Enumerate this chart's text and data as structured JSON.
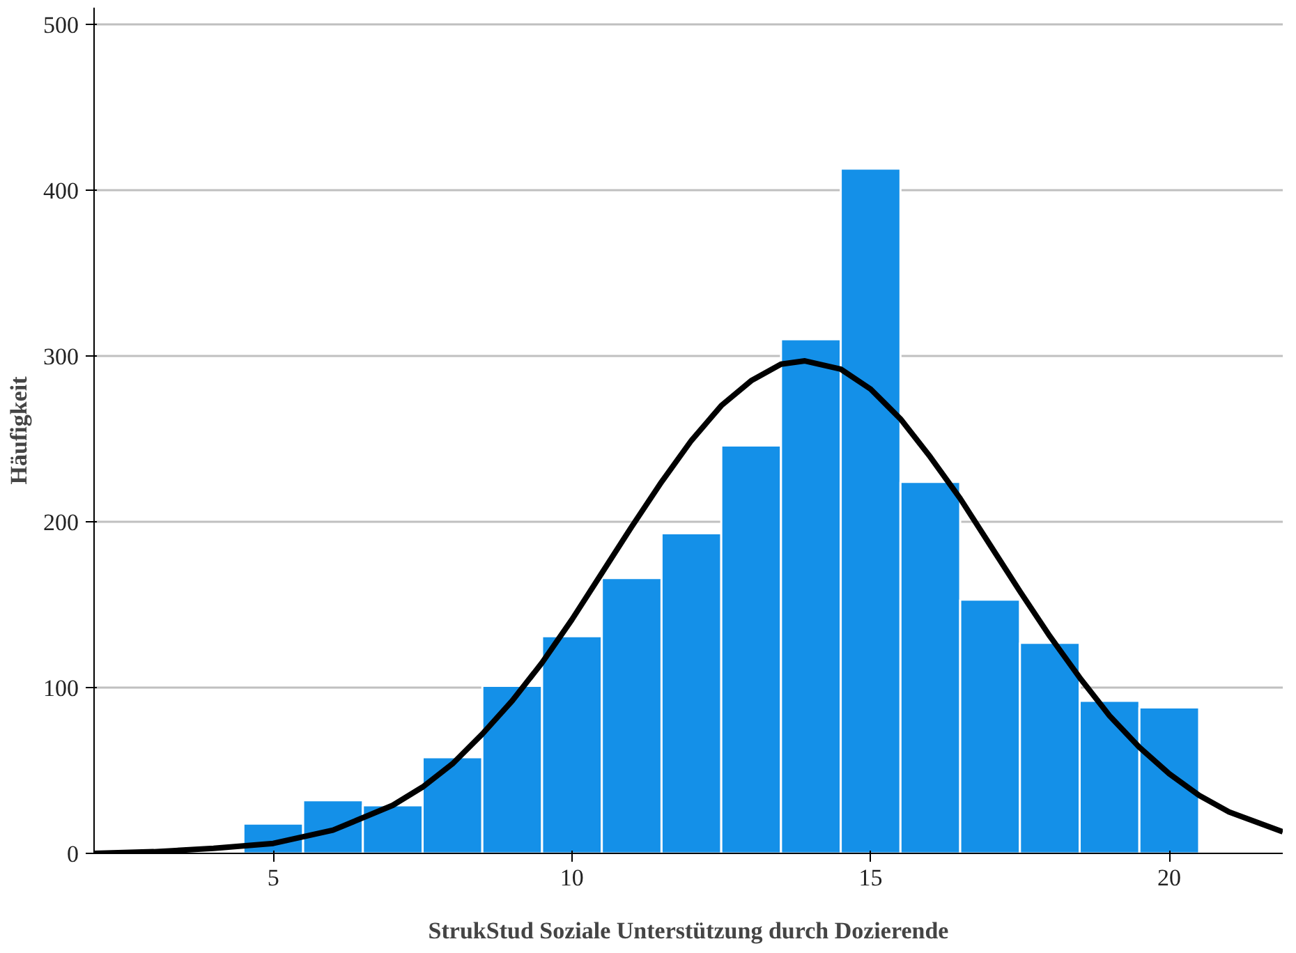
{
  "chart_data": {
    "type": "histogram",
    "xlabel": "StrukStud Soziale Unterstützung durch Dozierende",
    "ylabel": "Häufigkeit",
    "xlim": [
      2,
      21.9
    ],
    "ylim": [
      0,
      510
    ],
    "xticks": [
      5,
      10,
      15,
      20
    ],
    "yticks": [
      0,
      100,
      200,
      300,
      400,
      500
    ],
    "grid": "y",
    "series": [
      {
        "color": "#1490e8",
        "bins": [
          4.5,
          5.5,
          6.5,
          7.5,
          8.5,
          9.5,
          10.5,
          11.5,
          12.5,
          13.5,
          14.5,
          15.5,
          16.5,
          17.5,
          18.5,
          19.5,
          20.5
        ],
        "values": [
          18,
          32,
          29,
          58,
          101,
          131,
          166,
          193,
          246,
          310,
          413,
          224,
          153,
          127,
          92,
          88
        ]
      },
      {
        "type": "line",
        "color": "#000000",
        "x": [
          2,
          3,
          4,
          5,
          6,
          7,
          7.5,
          8,
          8.5,
          9,
          9.5,
          10,
          10.5,
          11,
          11.5,
          12,
          12.5,
          13,
          13.5,
          13.9,
          14.5,
          15,
          15.5,
          16,
          16.5,
          17,
          17.5,
          18,
          18.5,
          19,
          19.5,
          20,
          20.5,
          21,
          21.9
        ],
        "values": [
          0,
          1,
          3,
          6,
          14,
          29,
          40,
          54,
          72,
          92,
          115,
          141,
          169,
          197,
          224,
          249,
          270,
          285,
          295,
          297,
          292,
          280,
          262,
          239,
          214,
          186,
          158,
          131,
          106,
          83,
          64,
          48,
          35,
          25,
          13
        ]
      }
    ]
  }
}
